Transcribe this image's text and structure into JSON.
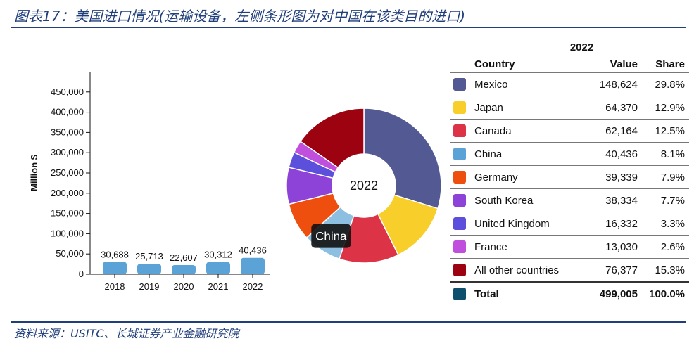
{
  "figure_title": "图表17：美国进口情况(运输设备，左侧条形图为对中国在该类目的进口)",
  "source": "资料来源：USITC、长城证券产业金融研究院",
  "chart_data": [
    {
      "type": "bar",
      "ylabel": "Million $",
      "categories": [
        "2018",
        "2019",
        "2020",
        "2021",
        "2022"
      ],
      "values": [
        30688,
        25713,
        22607,
        30312,
        40436
      ],
      "value_labels": [
        "30,688",
        "25,713",
        "22,607",
        "30,312",
        "40,436"
      ],
      "ylim": [
        0,
        500000
      ],
      "yticks": [
        0,
        50000,
        100000,
        150000,
        200000,
        250000,
        300000,
        350000,
        400000,
        450000
      ],
      "ytick_labels": [
        "0",
        "50,000",
        "100,000",
        "150,000",
        "200,000",
        "250,000",
        "300,000",
        "350,000",
        "400,000",
        "450,000"
      ],
      "color": "#5ba3d6"
    },
    {
      "type": "pie",
      "center_label": "2022",
      "tooltip_label": "China",
      "slices": [
        {
          "label": "Mexico",
          "value": 148624,
          "color": "#535a93"
        },
        {
          "label": "Japan",
          "value": 64370,
          "color": "#f8cf2a"
        },
        {
          "label": "Canada",
          "value": 62164,
          "color": "#dc3346"
        },
        {
          "label": "China",
          "value": 40436,
          "color": "#8cbfe0"
        },
        {
          "label": "Germany",
          "value": 39339,
          "color": "#ee4e0e"
        },
        {
          "label": "South Korea",
          "value": 38334,
          "color": "#8e43d8"
        },
        {
          "label": "United Kingdom",
          "value": 16332,
          "color": "#5b4fdc"
        },
        {
          "label": "France",
          "value": 13030,
          "color": "#bf4fdc"
        },
        {
          "label": "All other countries",
          "value": 76377,
          "color": "#9d0211"
        }
      ]
    },
    {
      "type": "table",
      "year": "2022",
      "columns": [
        "Country",
        "Value",
        "Share"
      ],
      "rows": [
        {
          "country": "Mexico",
          "value": "148,624",
          "share": "29.8%",
          "color": "#535a93"
        },
        {
          "country": "Japan",
          "value": "64,370",
          "share": "12.9%",
          "color": "#f8cf2a"
        },
        {
          "country": "Canada",
          "value": "62,164",
          "share": "12.5%",
          "color": "#dc3346"
        },
        {
          "country": "China",
          "value": "40,436",
          "share": "8.1%",
          "color": "#5ba3d6"
        },
        {
          "country": "Germany",
          "value": "39,339",
          "share": "7.9%",
          "color": "#ee4e0e"
        },
        {
          "country": "South Korea",
          "value": "38,334",
          "share": "7.7%",
          "color": "#8e43d8"
        },
        {
          "country": "United Kingdom",
          "value": "16,332",
          "share": "3.3%",
          "color": "#5b4fdc"
        },
        {
          "country": "France",
          "value": "13,030",
          "share": "2.6%",
          "color": "#bf4fdc"
        },
        {
          "country": "All other countries",
          "value": "76,377",
          "share": "15.3%",
          "color": "#9d0211"
        }
      ],
      "total": {
        "country": "Total",
        "value": "499,005",
        "share": "100.0%",
        "color": "#0e4f6e"
      }
    }
  ]
}
